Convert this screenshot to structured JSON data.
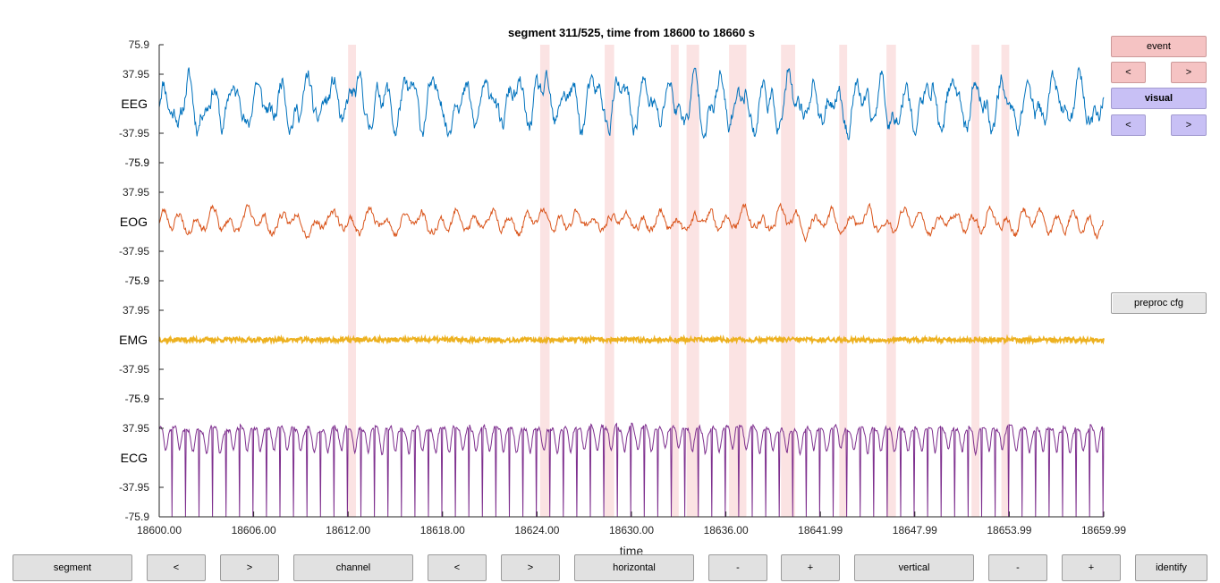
{
  "title": "segment 311/525, time from 18600 to 18660 s",
  "xlabel": "time",
  "buttons": {
    "event": "event",
    "event_prev": "<",
    "event_next": ">",
    "visual": "visual",
    "visual_prev": "<",
    "visual_next": ">",
    "preproc": "preproc cfg",
    "segment": "segment",
    "segment_prev": "<",
    "segment_next": ">",
    "channel": "channel",
    "channel_prev": "<",
    "channel_next": ">",
    "horizontal": "horizontal",
    "horizontal_minus": "-",
    "horizontal_plus": "+",
    "vertical": "vertical",
    "vertical_minus": "-",
    "vertical_plus": "+",
    "identify": "identify"
  },
  "colors": {
    "EEG": "#0072BD",
    "EOG": "#D95319",
    "EMG": "#EDB120",
    "ECG": "#7E2F8E",
    "artifact_band": "#fbe3e3",
    "event_button": "#f5c3c3",
    "visual_button": "#c8c0f5"
  },
  "chart_data": {
    "type": "line",
    "title": "segment 311/525, time from 18600 to 18660 s",
    "xlabel": "time",
    "xlim": [
      18600,
      18660
    ],
    "x_ticks": [
      "18600.00",
      "18606.00",
      "18612.00",
      "18618.00",
      "18624.00",
      "18630.00",
      "18636.00",
      "18641.99",
      "18647.99",
      "18653.99",
      "18659.99"
    ],
    "channels": [
      {
        "name": "EEG",
        "ylim": [
          -75.9,
          75.9
        ],
        "ticks": [
          "75.9",
          "37.95",
          "-37.95",
          "-75.9"
        ],
        "amplitude": 35,
        "style": "eeg",
        "seed": 11
      },
      {
        "name": "EOG",
        "ylim": [
          -75.9,
          75.9
        ],
        "ticks": [
          "75.9",
          "37.95",
          "-37.95",
          "-75.9"
        ],
        "amplitude": 18,
        "style": "eog",
        "seed": 23
      },
      {
        "name": "EMG",
        "ylim": [
          -75.9,
          75.9
        ],
        "ticks": [
          "75.9",
          "37.95",
          "-37.95",
          "-75.9"
        ],
        "amplitude": 3,
        "style": "emg",
        "seed": 37
      },
      {
        "name": "ECG",
        "ylim": [
          -75.9,
          75.9
        ],
        "ticks": [
          "75.9",
          "37.95",
          "-37.95",
          "-75.9"
        ],
        "amplitude": 40,
        "style": "ecg",
        "seed": 51
      }
    ],
    "artifact_intervals": [
      [
        18612.0,
        18612.5
      ],
      [
        18624.2,
        18624.8
      ],
      [
        18628.3,
        18628.9
      ],
      [
        18632.5,
        18633.0
      ],
      [
        18633.5,
        18634.3
      ],
      [
        18636.2,
        18637.3
      ],
      [
        18639.5,
        18640.4
      ],
      [
        18643.2,
        18643.7
      ],
      [
        18646.2,
        18646.8
      ],
      [
        18651.6,
        18652.1
      ],
      [
        18653.5,
        18654.0
      ]
    ]
  }
}
